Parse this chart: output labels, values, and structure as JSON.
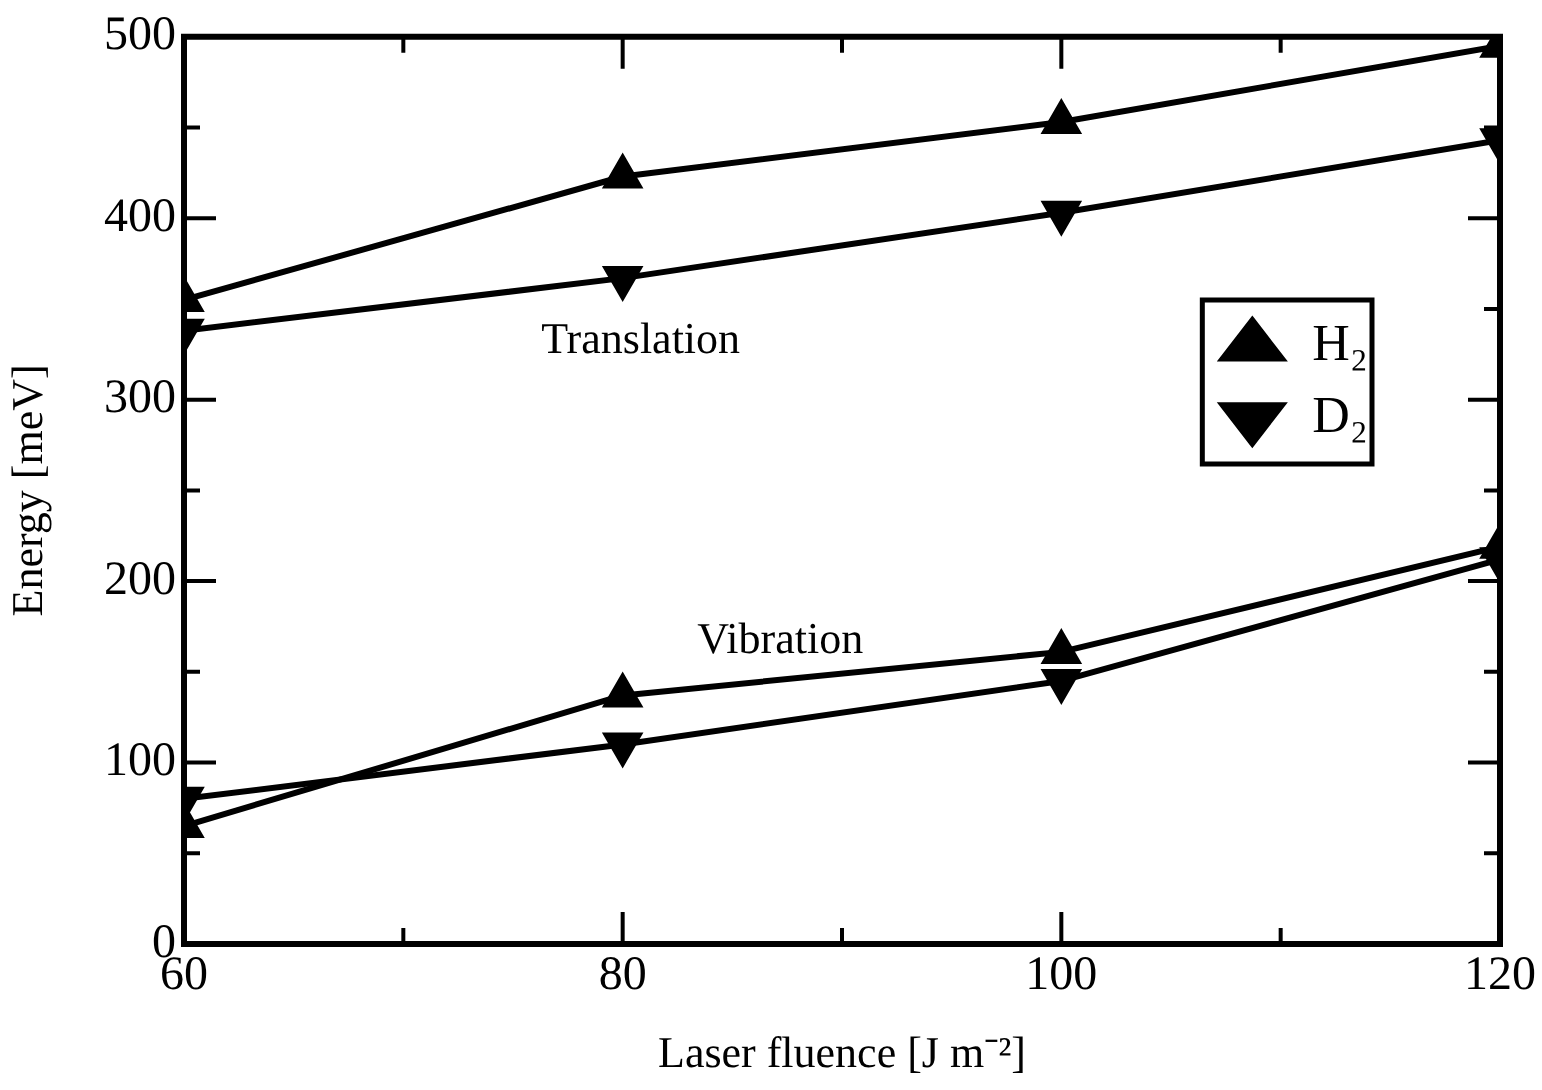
{
  "chart_data": {
    "type": "line",
    "xlabel": "Laser fluence [J m⁻²]",
    "ylabel": "Energy [meV]",
    "x": [
      60,
      80,
      100,
      120
    ],
    "series": [
      {
        "name": "H₂",
        "color": "#000000",
        "marker": "triangle",
        "values": [
          355,
          423,
          453,
          495
        ]
      },
      {
        "name": "D₂",
        "color": "#000000",
        "marker": "triangle-down",
        "values": [
          338,
          367,
          403,
          443
        ]
      },
      {
        "color": "#000000",
        "marker": "triangle",
        "values": [
          65,
          137,
          161,
          219
        ]
      },
      {
        "color": "#000000",
        "marker": "triangle-down",
        "values": [
          80,
          110,
          145,
          212
        ]
      }
    ],
    "xlim": [
      60,
      120
    ],
    "xticks": [
      60,
      {
        "value": 70,
        "label": null
      },
      80,
      {
        "value": 90,
        "label": null
      },
      100,
      {
        "value": 110,
        "label": null
      },
      120
    ],
    "ylim": [
      0,
      500
    ],
    "yticks": [
      0,
      {
        "value": 50,
        "label": null
      },
      100,
      {
        "value": 150,
        "label": null
      },
      200,
      {
        "value": 250,
        "label": null
      },
      300,
      {
        "value": 350,
        "label": null
      },
      400,
      {
        "value": 450,
        "label": null
      },
      500
    ],
    "annotations": [
      "Translation",
      "Vibration"
    ],
    "grid": false,
    "legend": "right",
    "line_style": "solid"
  }
}
